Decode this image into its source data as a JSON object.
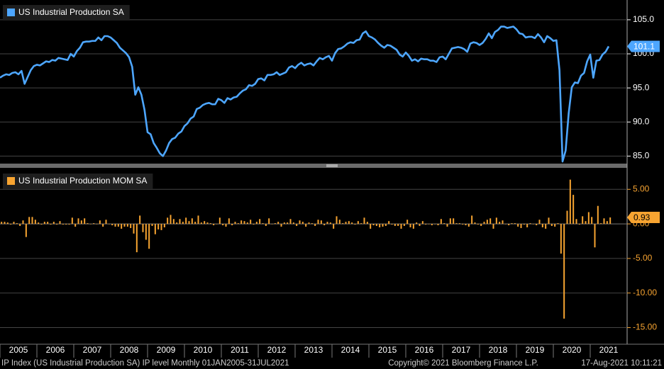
{
  "chart_data": [
    {
      "type": "line",
      "x": [
        "2005-01",
        "2005-02",
        "2005-03",
        "2005-04",
        "2005-05",
        "2005-06",
        "2005-07",
        "2005-08",
        "2005-09",
        "2005-10",
        "2005-11",
        "2005-12",
        "2006-01",
        "2006-02",
        "2006-03",
        "2006-04",
        "2006-05",
        "2006-06",
        "2006-07",
        "2006-08",
        "2006-09",
        "2006-10",
        "2006-11",
        "2006-12",
        "2007-01",
        "2007-02",
        "2007-03",
        "2007-04",
        "2007-05",
        "2007-06",
        "2007-07",
        "2007-08",
        "2007-09",
        "2007-10",
        "2007-11",
        "2007-12",
        "2008-01",
        "2008-02",
        "2008-03",
        "2008-04",
        "2008-05",
        "2008-06",
        "2008-07",
        "2008-08",
        "2008-09",
        "2008-10",
        "2008-11",
        "2008-12",
        "2009-01",
        "2009-02",
        "2009-03",
        "2009-04",
        "2009-05",
        "2009-06",
        "2009-07",
        "2009-08",
        "2009-09",
        "2009-10",
        "2009-11",
        "2009-12",
        "2010-01",
        "2010-02",
        "2010-03",
        "2010-04",
        "2010-05",
        "2010-06",
        "2010-07",
        "2010-08",
        "2010-09",
        "2010-10",
        "2010-11",
        "2010-12",
        "2011-01",
        "2011-02",
        "2011-03",
        "2011-04",
        "2011-05",
        "2011-06",
        "2011-07",
        "2011-08",
        "2011-09",
        "2011-10",
        "2011-11",
        "2011-12",
        "2012-01",
        "2012-02",
        "2012-03",
        "2012-04",
        "2012-05",
        "2012-06",
        "2012-07",
        "2012-08",
        "2012-09",
        "2012-10",
        "2012-11",
        "2012-12",
        "2013-01",
        "2013-02",
        "2013-03",
        "2013-04",
        "2013-05",
        "2013-06",
        "2013-07",
        "2013-08",
        "2013-09",
        "2013-10",
        "2013-11",
        "2013-12",
        "2014-01",
        "2014-02",
        "2014-03",
        "2014-04",
        "2014-05",
        "2014-06",
        "2014-07",
        "2014-08",
        "2014-09",
        "2014-10",
        "2014-11",
        "2014-12",
        "2015-01",
        "2015-02",
        "2015-03",
        "2015-04",
        "2015-05",
        "2015-06",
        "2015-07",
        "2015-08",
        "2015-09",
        "2015-10",
        "2015-11",
        "2015-12",
        "2016-01",
        "2016-02",
        "2016-03",
        "2016-04",
        "2016-05",
        "2016-06",
        "2016-07",
        "2016-08",
        "2016-09",
        "2016-10",
        "2016-11",
        "2016-12",
        "2017-01",
        "2017-02",
        "2017-03",
        "2017-04",
        "2017-05",
        "2017-06",
        "2017-07",
        "2017-08",
        "2017-09",
        "2017-10",
        "2017-11",
        "2017-12",
        "2018-01",
        "2018-02",
        "2018-03",
        "2018-04",
        "2018-05",
        "2018-06",
        "2018-07",
        "2018-08",
        "2018-09",
        "2018-10",
        "2018-11",
        "2018-12",
        "2019-01",
        "2019-02",
        "2019-03",
        "2019-04",
        "2019-05",
        "2019-06",
        "2019-07",
        "2019-08",
        "2019-09",
        "2019-10",
        "2019-11",
        "2019-12",
        "2020-01",
        "2020-02",
        "2020-03",
        "2020-04",
        "2020-05",
        "2020-06",
        "2020-07",
        "2020-08",
        "2020-09",
        "2020-10",
        "2020-11",
        "2020-12",
        "2021-01",
        "2021-02",
        "2021-03",
        "2021-04",
        "2021-05",
        "2021-06",
        "2021-07"
      ],
      "series": [
        {
          "name": "US Industrial Production SA",
          "color": "#4da6ff",
          "values": [
            96.5,
            96.8,
            97.0,
            96.9,
            97.2,
            97.3,
            97.0,
            97.5,
            95.6,
            96.6,
            97.6,
            98.2,
            98.4,
            98.3,
            98.6,
            98.9,
            98.8,
            99.1,
            99.0,
            99.4,
            99.3,
            99.2,
            99.1,
            100.0,
            99.6,
            100.4,
            100.9,
            101.7,
            101.8,
            101.8,
            101.9,
            101.9,
            102.4,
            102.0,
            102.6,
            102.6,
            102.4,
            102.0,
            101.6,
            100.9,
            100.5,
            100.1,
            99.5,
            98.1,
            94.0,
            95.1,
            94.0,
            91.8,
            88.5,
            88.2,
            86.9,
            86.2,
            85.4,
            85.0,
            85.8,
            86.9,
            87.5,
            87.7,
            88.3,
            88.6,
            89.4,
            89.8,
            90.5,
            90.8,
            91.9,
            92.1,
            92.5,
            92.7,
            92.8,
            92.6,
            92.6,
            93.4,
            93.2,
            92.8,
            93.5,
            93.3,
            93.6,
            93.7,
            94.2,
            94.6,
            94.8,
            95.4,
            95.3,
            95.6,
            96.3,
            96.4,
            96.1,
            96.9,
            96.9,
            97.0,
            97.3,
            96.9,
            97.1,
            97.3,
            98.0,
            98.2,
            97.9,
            98.4,
            98.7,
            98.3,
            98.5,
            98.6,
            98.3,
            98.9,
            99.4,
            99.2,
            99.5,
            99.7,
            99.0,
            100.1,
            100.7,
            100.8,
            101.1,
            101.5,
            101.7,
            101.6,
            102.0,
            102.1,
            103.0,
            103.3,
            102.6,
            102.4,
            102.1,
            101.6,
            101.2,
            100.9,
            101.3,
            101.2,
            100.9,
            100.6,
            99.9,
            99.6,
            100.2,
            99.7,
            99.0,
            99.2,
            98.9,
            99.3,
            99.2,
            99.2,
            99.0,
            99.0,
            98.8,
            99.5,
            99.6,
            99.2,
            100.0,
            100.8,
            100.9,
            101.0,
            100.9,
            100.7,
            100.3,
            101.5,
            101.7,
            101.6,
            101.3,
            101.6,
            102.2,
            103.0,
            102.3,
            103.2,
            103.5,
            104.0,
            104.0,
            103.8,
            103.9,
            104.0,
            103.6,
            103.0,
            102.9,
            102.4,
            102.5,
            102.5,
            102.3,
            102.9,
            102.4,
            101.7,
            102.6,
            102.3,
            101.9,
            102.0,
            97.6,
            84.2,
            85.8,
            91.3,
            95.1,
            95.8,
            95.7,
            96.8,
            97.2,
            98.9,
            99.9,
            96.5,
            99.0,
            99.1,
            99.9,
            100.3,
            101.1
          ]
        }
      ],
      "xlim": [
        2005,
        2022
      ],
      "ylim": [
        84,
        107.9
      ],
      "yticks": [
        {
          "value": 85,
          "label": "85.0"
        },
        {
          "value": 90,
          "label": "90.0"
        },
        {
          "value": 95,
          "label": "95.0"
        },
        {
          "value": 100,
          "label": "100.0"
        },
        {
          "value": 105,
          "label": "105.0"
        }
      ],
      "grid": true
    },
    {
      "type": "bar",
      "x": [
        "2005-01",
        "2005-02",
        "2005-03",
        "2005-04",
        "2005-05",
        "2005-06",
        "2005-07",
        "2005-08",
        "2005-09",
        "2005-10",
        "2005-11",
        "2005-12",
        "2006-01",
        "2006-02",
        "2006-03",
        "2006-04",
        "2006-05",
        "2006-06",
        "2006-07",
        "2006-08",
        "2006-09",
        "2006-10",
        "2006-11",
        "2006-12",
        "2007-01",
        "2007-02",
        "2007-03",
        "2007-04",
        "2007-05",
        "2007-06",
        "2007-07",
        "2007-08",
        "2007-09",
        "2007-10",
        "2007-11",
        "2007-12",
        "2008-01",
        "2008-02",
        "2008-03",
        "2008-04",
        "2008-05",
        "2008-06",
        "2008-07",
        "2008-08",
        "2008-09",
        "2008-10",
        "2008-11",
        "2008-12",
        "2009-01",
        "2009-02",
        "2009-03",
        "2009-04",
        "2009-05",
        "2009-06",
        "2009-07",
        "2009-08",
        "2009-09",
        "2009-10",
        "2009-11",
        "2009-12",
        "2010-01",
        "2010-02",
        "2010-03",
        "2010-04",
        "2010-05",
        "2010-06",
        "2010-07",
        "2010-08",
        "2010-09",
        "2010-10",
        "2010-11",
        "2010-12",
        "2011-01",
        "2011-02",
        "2011-03",
        "2011-04",
        "2011-05",
        "2011-06",
        "2011-07",
        "2011-08",
        "2011-09",
        "2011-10",
        "2011-11",
        "2011-12",
        "2012-01",
        "2012-02",
        "2012-03",
        "2012-04",
        "2012-05",
        "2012-06",
        "2012-07",
        "2012-08",
        "2012-09",
        "2012-10",
        "2012-11",
        "2012-12",
        "2013-01",
        "2013-02",
        "2013-03",
        "2013-04",
        "2013-05",
        "2013-06",
        "2013-07",
        "2013-08",
        "2013-09",
        "2013-10",
        "2013-11",
        "2013-12",
        "2014-01",
        "2014-02",
        "2014-03",
        "2014-04",
        "2014-05",
        "2014-06",
        "2014-07",
        "2014-08",
        "2014-09",
        "2014-10",
        "2014-11",
        "2014-12",
        "2015-01",
        "2015-02",
        "2015-03",
        "2015-04",
        "2015-05",
        "2015-06",
        "2015-07",
        "2015-08",
        "2015-09",
        "2015-10",
        "2015-11",
        "2015-12",
        "2016-01",
        "2016-02",
        "2016-03",
        "2016-04",
        "2016-05",
        "2016-06",
        "2016-07",
        "2016-08",
        "2016-09",
        "2016-10",
        "2016-11",
        "2016-12",
        "2017-01",
        "2017-02",
        "2017-03",
        "2017-04",
        "2017-05",
        "2017-06",
        "2017-07",
        "2017-08",
        "2017-09",
        "2017-10",
        "2017-11",
        "2017-12",
        "2018-01",
        "2018-02",
        "2018-03",
        "2018-04",
        "2018-05",
        "2018-06",
        "2018-07",
        "2018-08",
        "2018-09",
        "2018-10",
        "2018-11",
        "2018-12",
        "2019-01",
        "2019-02",
        "2019-03",
        "2019-04",
        "2019-05",
        "2019-06",
        "2019-07",
        "2019-08",
        "2019-09",
        "2019-10",
        "2019-11",
        "2019-12",
        "2020-01",
        "2020-02",
        "2020-03",
        "2020-04",
        "2020-05",
        "2020-06",
        "2020-07",
        "2020-08",
        "2020-09",
        "2020-10",
        "2020-11",
        "2020-12",
        "2021-01",
        "2021-02",
        "2021-03",
        "2021-04",
        "2021-05",
        "2021-06",
        "2021-07"
      ],
      "series": [
        {
          "name": "US Industrial Production MOM SA",
          "color": "#f7a431",
          "values": [
            0.3,
            0.3,
            0.2,
            -0.1,
            0.3,
            0.1,
            -0.3,
            0.5,
            -1.9,
            1.0,
            1.0,
            0.6,
            0.2,
            -0.1,
            0.3,
            0.3,
            -0.1,
            0.3,
            -0.1,
            0.4,
            -0.1,
            -0.1,
            -0.1,
            0.9,
            -0.4,
            0.8,
            0.5,
            0.8,
            0.1,
            0.0,
            0.1,
            0.0,
            0.5,
            -0.4,
            0.6,
            0.0,
            -0.2,
            -0.4,
            -0.4,
            -0.7,
            -0.4,
            -0.4,
            -0.6,
            -1.4,
            -4.1,
            1.2,
            -1.2,
            -2.3,
            -3.6,
            -0.3,
            -1.5,
            -0.8,
            -0.9,
            -0.5,
            0.9,
            1.3,
            0.7,
            0.2,
            0.7,
            0.3,
            0.9,
            0.4,
            0.8,
            0.3,
            1.2,
            0.2,
            0.4,
            0.2,
            0.1,
            -0.2,
            0.0,
            0.9,
            -0.2,
            -0.4,
            0.8,
            -0.2,
            0.3,
            0.1,
            0.5,
            0.4,
            0.2,
            0.6,
            -0.1,
            0.3,
            0.7,
            0.1,
            -0.3,
            0.8,
            0.0,
            0.1,
            0.3,
            -0.4,
            0.2,
            0.2,
            0.7,
            0.2,
            -0.3,
            0.5,
            0.3,
            -0.4,
            0.2,
            0.1,
            -0.3,
            0.6,
            0.5,
            -0.2,
            0.3,
            0.2,
            -0.7,
            1.1,
            0.6,
            0.1,
            0.3,
            0.4,
            0.2,
            -0.1,
            0.4,
            0.1,
            0.9,
            0.3,
            -0.7,
            -0.2,
            -0.3,
            -0.5,
            -0.4,
            -0.3,
            0.4,
            -0.1,
            -0.3,
            -0.3,
            -0.7,
            -0.3,
            0.6,
            -0.5,
            -0.7,
            0.2,
            -0.3,
            0.4,
            -0.1,
            0.0,
            -0.2,
            0.0,
            -0.2,
            0.7,
            0.1,
            -0.4,
            0.8,
            0.8,
            0.1,
            0.1,
            -0.1,
            -0.2,
            -0.4,
            1.2,
            0.2,
            -0.1,
            -0.3,
            0.3,
            0.6,
            0.8,
            -0.7,
            0.9,
            0.3,
            0.5,
            0.0,
            -0.2,
            0.1,
            0.1,
            -0.4,
            -0.6,
            -0.1,
            -0.5,
            0.1,
            0.0,
            -0.2,
            0.6,
            -0.5,
            -0.7,
            0.9,
            -0.3,
            -0.4,
            0.1,
            -4.3,
            -13.7,
            1.9,
            6.4,
            4.2,
            0.7,
            -0.1,
            1.1,
            0.4,
            1.7,
            1.0,
            -3.4,
            2.6,
            0.1,
            0.8,
            0.4,
            0.93
          ]
        }
      ],
      "xlim": [
        2005,
        2022
      ],
      "xticks": [
        2005,
        2006,
        2007,
        2008,
        2009,
        2010,
        2011,
        2012,
        2013,
        2014,
        2015,
        2016,
        2017,
        2018,
        2019,
        2020,
        2021
      ],
      "ylim": [
        -17.3,
        8.0
      ],
      "yticks": [
        {
          "value": 5,
          "label": "5.00"
        },
        {
          "value": 0,
          "label": "0.00"
        },
        {
          "value": -5,
          "label": "-5.00"
        },
        {
          "value": -10,
          "label": "-10.00"
        },
        {
          "value": -15,
          "label": "-15.00"
        }
      ],
      "grid": true
    }
  ],
  "footer": {
    "left": "IP Index (US Industrial Production SA) IP level  Monthly 01JAN2005-31JUL2021",
    "center": "Copyright© 2021 Bloomberg Finance L.P.",
    "right": "17-Aug-2021 10:11:21"
  }
}
